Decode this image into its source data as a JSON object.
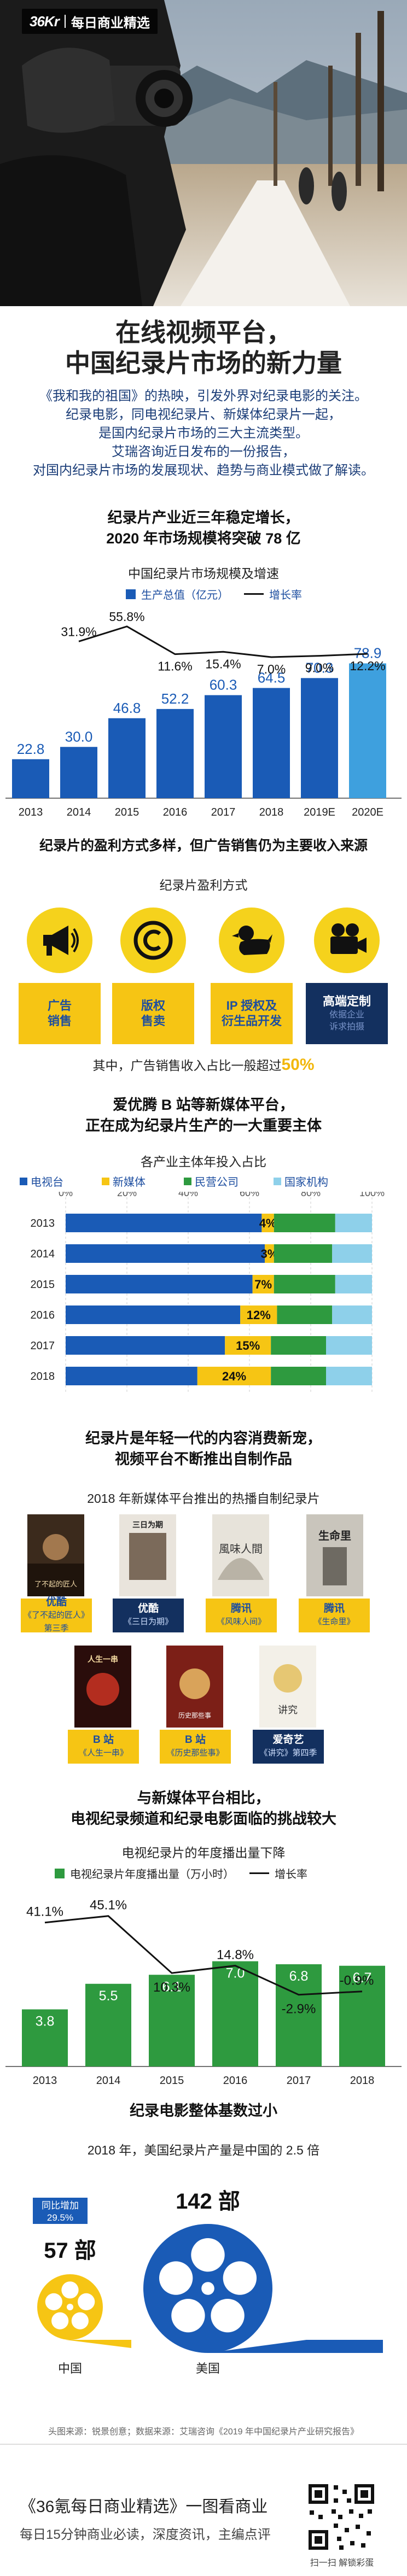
{
  "brand": {
    "logo": "36Kr",
    "name": "每日商业精选"
  },
  "title": {
    "line1": "在线视频平台，",
    "line2": "中国纪录片市场的新力量"
  },
  "intro": [
    "《我和我的祖国》的热映，引发外界对纪录电影的关注。",
    "纪录电影，同电视纪录片、新媒体纪录片一起，",
    "是国内纪录片市场的三大主流类型。",
    "艾瑞咨询近日发布的一份报告，",
    "对国内纪录片市场的发展现状、趋势与商业模式做了解读。"
  ],
  "section1": {
    "heading1": "纪录片产业近三年稳定增长，",
    "heading2": "2020 年市场规模将突破 78 亿",
    "subtitle": "中国纪录片市场规模及增速",
    "legend_bar": "生产总值（亿元）",
    "legend_line": "增长率"
  },
  "chart_data": [
    {
      "type": "bar",
      "title": "中国纪录片市场规模及增速",
      "categories": [
        "2013",
        "2014",
        "2015",
        "2016",
        "2017",
        "2018",
        "2019E",
        "2020E"
      ],
      "series": [
        {
          "name": "生产总值（亿元）",
          "values": [
            22.8,
            30.0,
            46.8,
            52.2,
            60.3,
            64.5,
            70.3,
            78.9
          ]
        },
        {
          "name": "增长率",
          "type": "line",
          "values": [
            null,
            31.9,
            55.8,
            11.6,
            15.4,
            7.0,
            9.0,
            12.2
          ],
          "labels": [
            "",
            "31.9%",
            "55.8%",
            "11.6%",
            "15.4%",
            "7.0%",
            "9.0%",
            "12.2%"
          ]
        }
      ],
      "colors": {
        "bar": "#1a5bb6",
        "bar_last": "#3ea0de",
        "line": "#111111"
      }
    },
    {
      "type": "bar",
      "stacked": true,
      "orientation": "horizontal",
      "title": "各产业主体年投入占比",
      "categories": [
        "2013",
        "2014",
        "2015",
        "2016",
        "2017",
        "2018"
      ],
      "x_ticks": [
        "0%",
        "20%",
        "40%",
        "60%",
        "80%",
        "100%"
      ],
      "series": [
        {
          "name": "电视台",
          "values": [
            64,
            65,
            61,
            57,
            52,
            43
          ]
        },
        {
          "name": "新媒体",
          "values": [
            4,
            3,
            7,
            12,
            15,
            24
          ]
        },
        {
          "name": "民营公司",
          "values": [
            20,
            19,
            20,
            18,
            18,
            18
          ]
        },
        {
          "name": "国家机构",
          "values": [
            12,
            13,
            12,
            13,
            15,
            15
          ]
        }
      ],
      "labels": [
        "4%",
        "3%",
        "7%",
        "12%",
        "15%",
        "24%"
      ],
      "colors": {
        "电视台": "#1a5bb6",
        "新媒体": "#f6c514",
        "民营公司": "#2e9a3f",
        "国家机构": "#8ed0ea"
      }
    },
    {
      "type": "bar",
      "title": "电视纪录片的年度播出量下降",
      "categories": [
        "2013",
        "2014",
        "2015",
        "2016",
        "2017",
        "2018"
      ],
      "series": [
        {
          "name": "电视纪录片年度播出量（万小时）",
          "values": [
            3.8,
            5.5,
            6.1,
            7.0,
            6.8,
            6.7
          ]
        },
        {
          "name": "增长率",
          "type": "line",
          "values": [
            41.1,
            45.1,
            10.3,
            14.8,
            -2.9,
            -0.9
          ],
          "labels": [
            "41.1%",
            "45.1%",
            "10.3%",
            "14.8%",
            "-2.9%",
            "-0.9%"
          ]
        }
      ],
      "colors": {
        "bar": "#2e9a3f",
        "line": "#111111"
      }
    },
    {
      "type": "bar",
      "title": "2018 年，美国纪录片产量是中国的 2.5 倍",
      "categories": [
        "中国",
        "美国"
      ],
      "values": [
        57,
        142
      ],
      "labels": [
        "57 部",
        "142 部"
      ],
      "annotation": {
        "text1": "同比增加",
        "text2": "29.5%"
      }
    }
  ],
  "section2": {
    "heading": "纪录片的盈利方式多样，但广告销售仍为主要收入来源",
    "subtitle": "纪录片盈利方式",
    "models": [
      {
        "icon": "megaphone-icon",
        "label1": "广告",
        "label2": "销售"
      },
      {
        "icon": "copyright-icon",
        "label1": "版权",
        "label2": "售卖"
      },
      {
        "icon": "duck-icon",
        "label1": "IP 授权及",
        "label2": "衍生品开发"
      },
      {
        "icon": "camera-icon",
        "label1": "高端定制",
        "label2": "",
        "note1": "依据企业",
        "note2": "诉求拍摄"
      }
    ],
    "note_prefix": "其中，广告销售收入占比一般超过",
    "note_value": "50%"
  },
  "section3": {
    "heading1": "爱优腾 B 站等新媒体平台，",
    "heading2": "正在成为纪录片生产的一大重要主体",
    "subtitle": "各产业主体年投入占比",
    "legend": [
      "电视台",
      "新媒体",
      "民营公司",
      "国家机构"
    ]
  },
  "section4": {
    "heading1": "纪录片是年轻一代的内容消费新宠，",
    "heading2": "视频平台不断推出自制作品",
    "subtitle": "2018 年新媒体平台推出的热播自制纪录片",
    "posters_row1": [
      {
        "platform": "优酷",
        "title": "《了不起的匠人》第三季"
      },
      {
        "platform": "优酷",
        "title": "《三日为期》"
      },
      {
        "platform": "腾讯",
        "title": "《风味人间》"
      },
      {
        "platform": "腾讯",
        "title": "《生命里》"
      }
    ],
    "poster_texts": [
      "了不起的匠人",
      "三日为期",
      "風味人間",
      "生命里",
      "人生一串",
      "历史那些事",
      "讲究"
    ],
    "posters_row2": [
      {
        "platform": "B 站",
        "title": "《人生一串》"
      },
      {
        "platform": "B 站",
        "title": "《历史那些事》"
      },
      {
        "platform": "爱奇艺",
        "title": "《讲究》第四季"
      }
    ]
  },
  "section5": {
    "heading1": "与新媒体平台相比，",
    "heading2": "电视纪录频道和纪录电影面临的挑战较大",
    "subtitle": "电视纪录片的年度播出量下降",
    "legend_bar": "电视纪录片年度播出量（万小时）",
    "legend_line": "增长率"
  },
  "section6": {
    "heading": "纪录电影整体基数过小",
    "subtitle": "2018 年，美国纪录片产量是中国的 2.5 倍"
  },
  "footer": {
    "source": "头图来源：锐景创意；数据来源：艾瑞咨询《2019 年中国纪录片产业研究报告》",
    "line1": "《36氪每日商业精选》一图看商业",
    "line2": "每日15分钟商业必读，深度资讯，主编点评",
    "qr_caption": "扫一扫 解锁彩蛋"
  }
}
